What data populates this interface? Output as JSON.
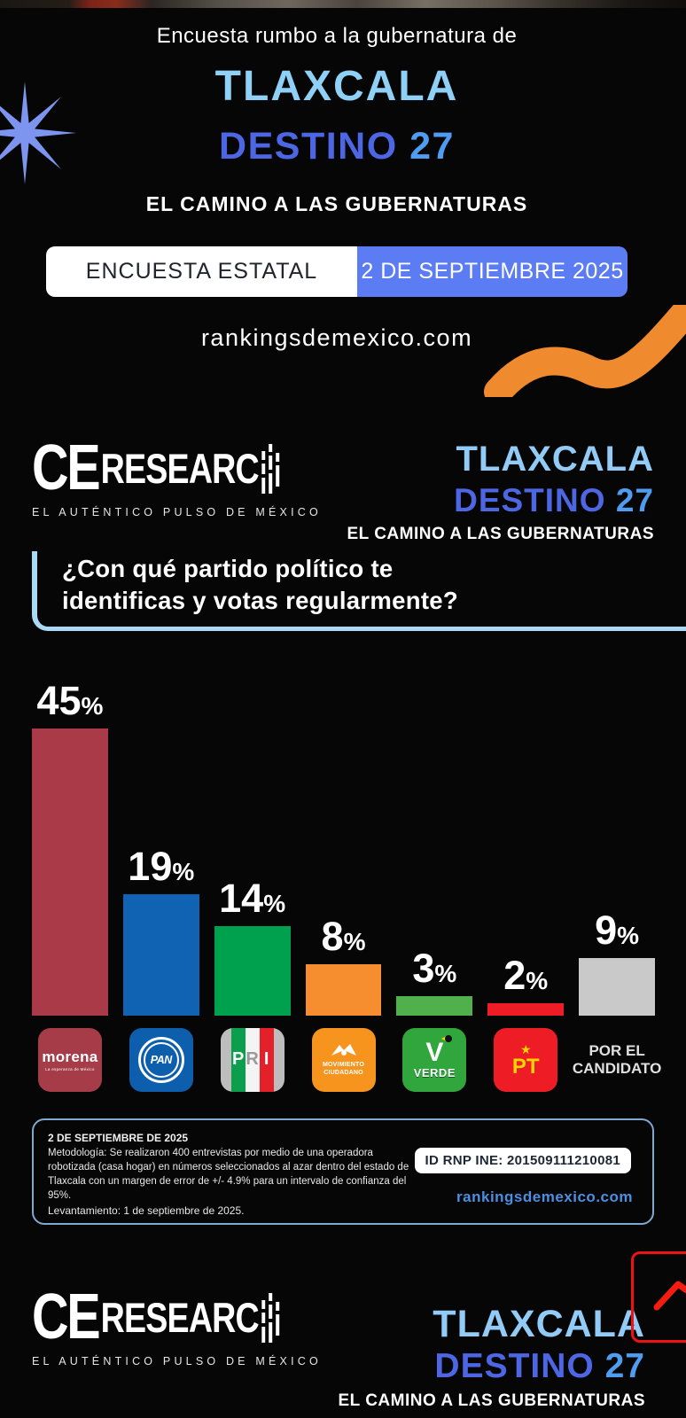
{
  "hero": {
    "eyebrow": "Encuesta rumbo a la gubernatura de",
    "state": "TLAXCALA",
    "program": "DESTINO",
    "program_number": "27",
    "subtitle": "EL CAMINO A LAS GUBERNATURAS",
    "banner": {
      "left": "ENCUESTA ESTATAL",
      "right": "2 DE SEPTIEMBRE 2025"
    },
    "website": "rankingsdemexico.com"
  },
  "brand": {
    "name_ce": "CE",
    "name_research": "RESEARC",
    "tagline": "EL AUTÉNTICO PULSO DE MÉXICO"
  },
  "question": "¿Con qué partido político te identificas y votas regularmente?",
  "chart_data": {
    "type": "bar",
    "title": "¿Con qué partido político te identificas y votas regularmente?",
    "categories": [
      "MORENA",
      "PAN",
      "PRI",
      "MOVIMIENTO CIUDADANO",
      "PARTIDO VERDE",
      "PT",
      "POR EL CANDIDATO"
    ],
    "values": [
      45,
      19,
      14,
      8,
      3,
      2,
      9
    ],
    "labels": [
      "45",
      "19",
      "14",
      "8",
      "3",
      "2",
      "9"
    ],
    "percent_sign": "%",
    "bar_colors": [
      "#ab3a49",
      "#0f63b2",
      "#00a14e",
      "#f68d2e",
      "#4fb04c",
      "#ee1c25",
      "#c9c9c9"
    ],
    "ylim": [
      0,
      50
    ],
    "xlabel": "",
    "ylabel": "",
    "grid": false,
    "legend_position": "party logos below bars"
  },
  "party_logos": {
    "morena": {
      "text": "morena",
      "subtext": "La esperanza de México"
    },
    "pan": {
      "text": "PAN"
    },
    "pri": {
      "p": "P",
      "r": "R",
      "i": "I"
    },
    "mc": {
      "line1": "MOVIMIENTO",
      "line2": "CIUDADANO"
    },
    "verde": {
      "v": "V",
      "text": "VERDE"
    },
    "pt": {
      "star": "★",
      "text": "PT"
    },
    "candidate": {
      "line1": "POR EL",
      "line2": "CANDIDATO"
    }
  },
  "methodology": {
    "date": "2 DE SEPTIEMBRE DE 2025",
    "body": "Metodología: Se realizaron 400 entrevistas por medio de una operadora robotizada (casa hogar) en números seleccionados al azar dentro del estado de Tlaxcala con un margen de error de +/- 4.9% para un intervalo de confianza del 95%.",
    "fieldwork": "Levantamiento: 1 de septiembre de 2025.",
    "id": "ID RNP INE: 201509111210081",
    "website": "rankingsdemexico.com"
  },
  "footer": {
    "state": "TLAXCALA",
    "program": "DESTINO",
    "program_number": "27",
    "subtitle": "EL CAMINO A LAS GUBERNATURAS"
  },
  "colors": {
    "state_blue": "#8fd0f7",
    "program_blue": "#4d66e4",
    "number_blue": "#4f9df0",
    "banner_blue": "#5b7cf2",
    "accent_orange": "#f08a2e",
    "question_border": "#aad9f6",
    "methodology_border": "#7fa9cf",
    "link_blue": "#4b8fe3",
    "deco_red": "#ee1310"
  }
}
